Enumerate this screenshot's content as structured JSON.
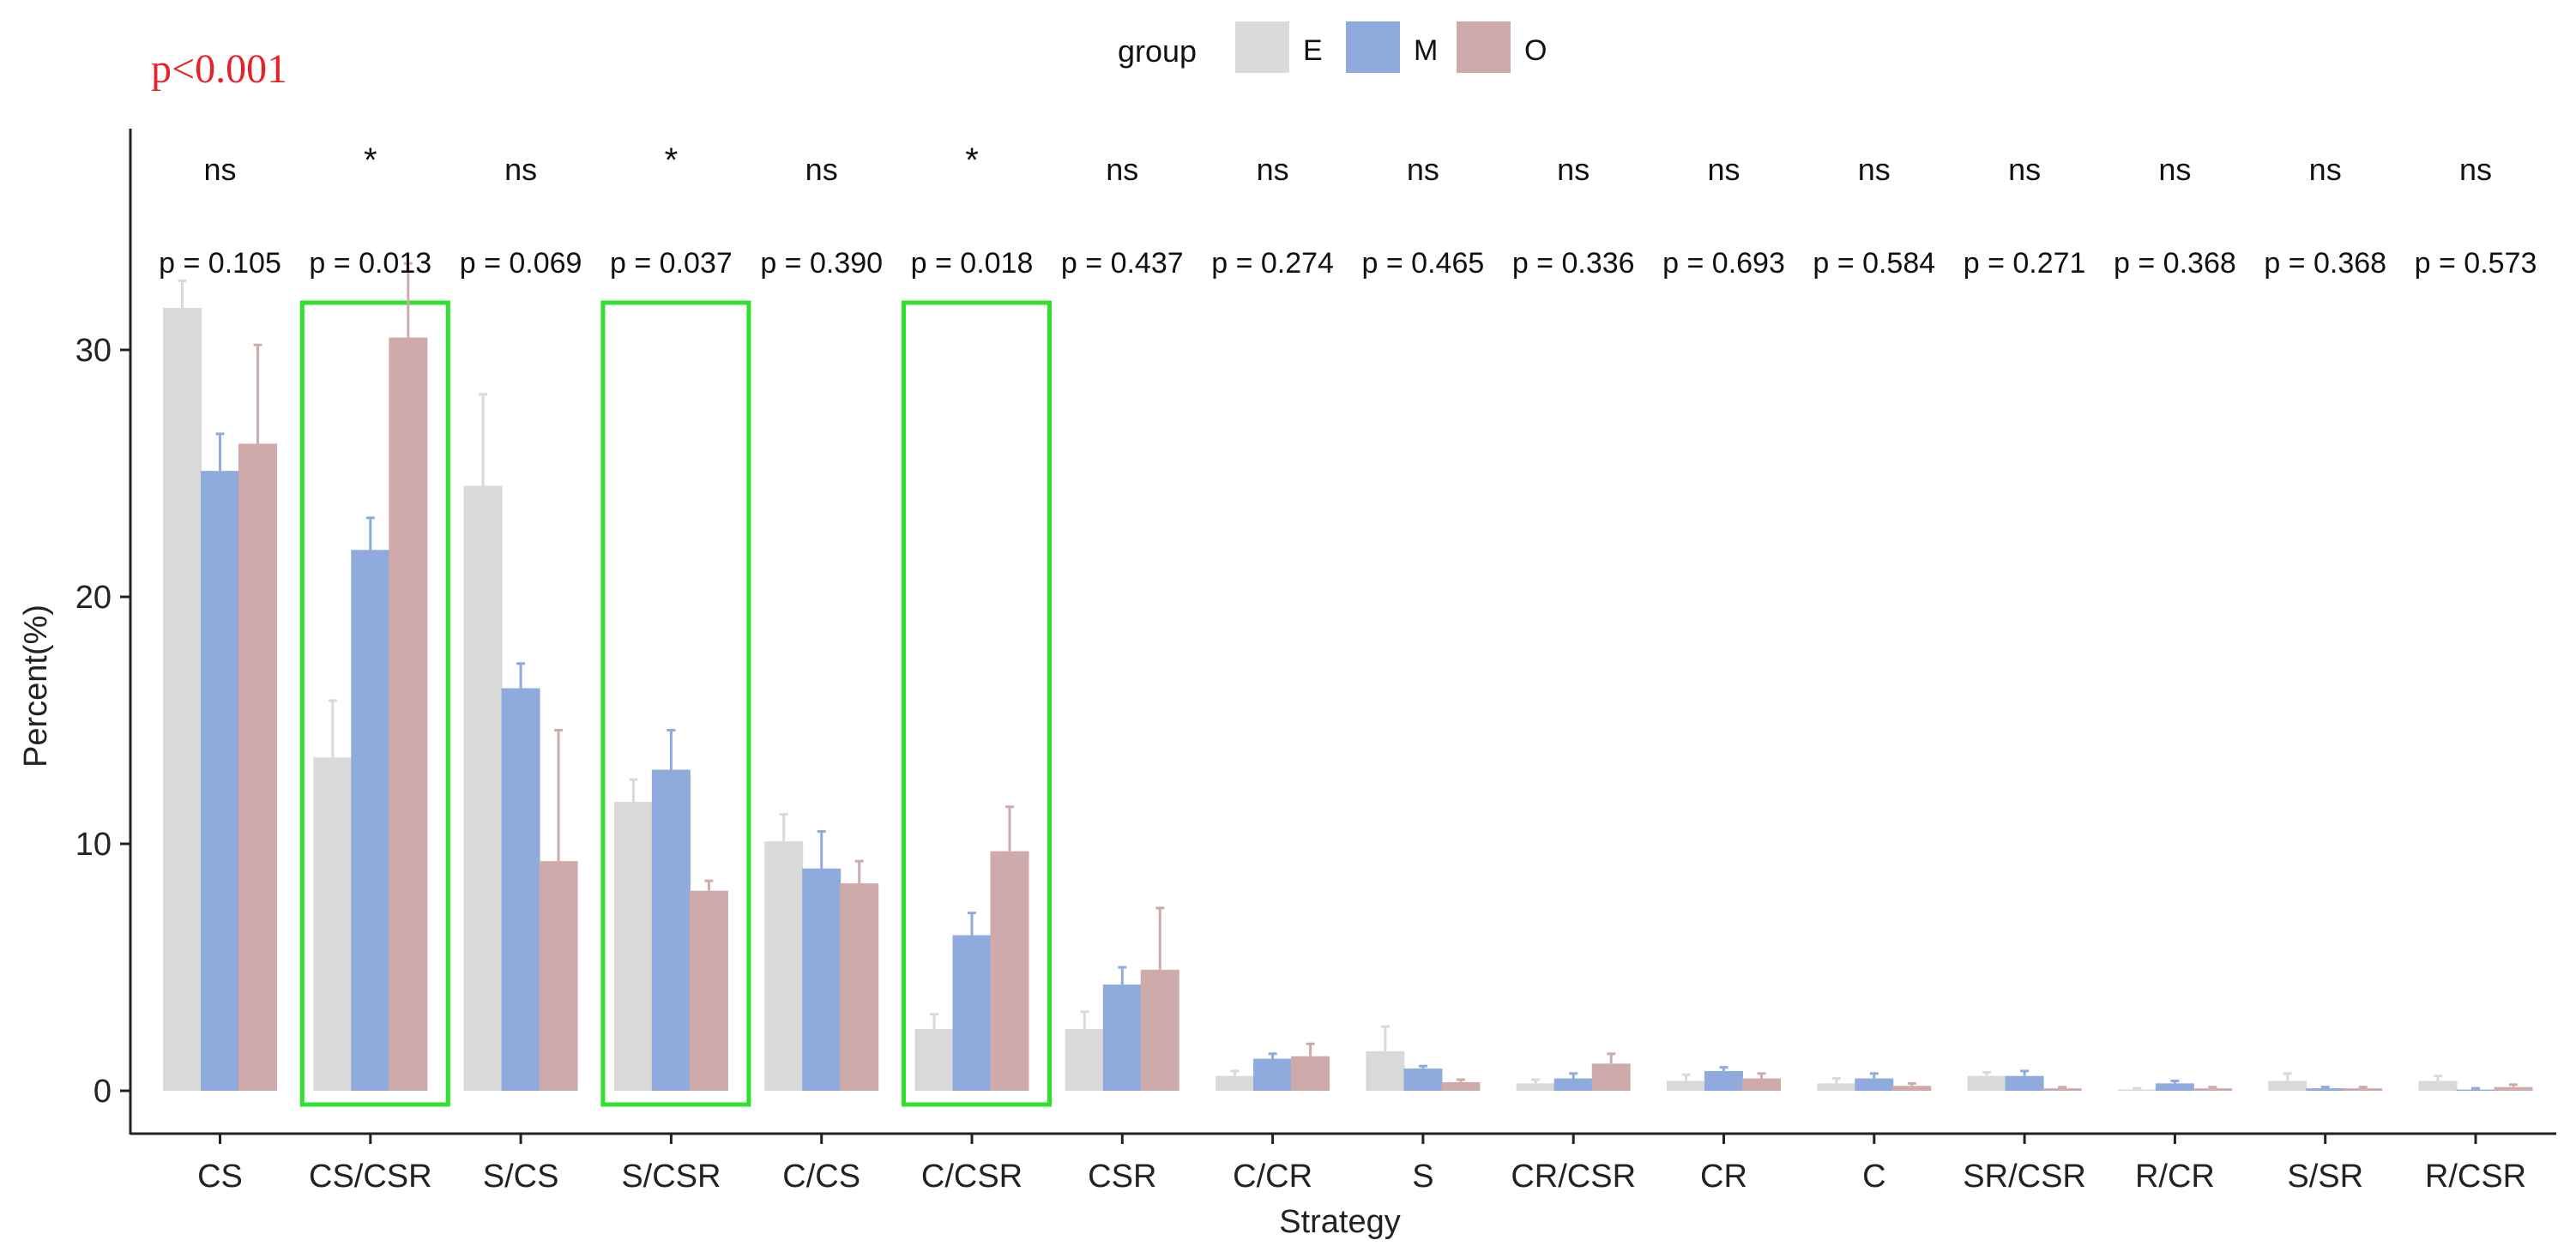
{
  "overall_p": {
    "text": "p<0.001",
    "color": "#e8212b"
  },
  "legend": {
    "title": "group",
    "items": [
      {
        "label": "E",
        "color": "#d9d9d9"
      },
      {
        "label": "M",
        "color": "#8faadc"
      },
      {
        "label": "O",
        "color": "#cfaaaa"
      }
    ]
  },
  "highlight_color": "#2fe02f",
  "chart_data": {
    "type": "bar",
    "title": "",
    "xlabel": "Strategy",
    "ylabel": "Percent(%)",
    "ylim": [
      -1.5,
      39
    ],
    "yticks": [
      0,
      10,
      20,
      30
    ],
    "ytick_labels": [
      "0",
      "10",
      "20",
      "30"
    ],
    "categories": [
      "CS",
      "CS/CSR",
      "S/CS",
      "S/CSR",
      "C/CS",
      "C/CSR",
      "CSR",
      "C/CR",
      "S",
      "CR/CSR",
      "CR",
      "C",
      "SR/CSR",
      "R/CR",
      "S/SR",
      "R/CSR"
    ],
    "series": [
      {
        "name": "E",
        "color": "#d9d9d9",
        "values": [
          31.7,
          13.5,
          24.5,
          11.7,
          10.1,
          2.5,
          2.5,
          0.6,
          1.6,
          0.3,
          0.4,
          0.3,
          0.6,
          0.05,
          0.4,
          0.4
        ],
        "errors": [
          1.1,
          2.3,
          3.7,
          0.9,
          1.1,
          0.6,
          0.7,
          0.2,
          1.0,
          0.15,
          0.25,
          0.2,
          0.15,
          0.05,
          0.3,
          0.2
        ]
      },
      {
        "name": "M",
        "color": "#8faadc",
        "values": [
          25.1,
          21.9,
          16.3,
          13.0,
          9.0,
          6.3,
          4.3,
          1.3,
          0.9,
          0.5,
          0.8,
          0.5,
          0.6,
          0.3,
          0.1,
          0.05
        ],
        "errors": [
          1.5,
          1.3,
          1.0,
          1.6,
          1.5,
          0.9,
          0.7,
          0.2,
          0.1,
          0.2,
          0.15,
          0.2,
          0.2,
          0.1,
          0.05,
          0.05
        ]
      },
      {
        "name": "O",
        "color": "#cfaaaa",
        "values": [
          26.2,
          30.5,
          9.3,
          8.1,
          8.4,
          9.7,
          4.9,
          1.4,
          0.35,
          1.1,
          0.5,
          0.2,
          0.1,
          0.1,
          0.1,
          0.15
        ],
        "errors": [
          4.0,
          3.0,
          5.3,
          0.4,
          0.9,
          1.8,
          2.5,
          0.5,
          0.1,
          0.4,
          0.2,
          0.1,
          0.05,
          0.05,
          0.05,
          0.1
        ]
      }
    ],
    "p_values": [
      "p = 0.105",
      "p = 0.013",
      "p = 0.069",
      "p = 0.037",
      "p = 0.390",
      "p = 0.018",
      "p = 0.437",
      "p = 0.274",
      "p = 0.465",
      "p = 0.336",
      "p = 0.693",
      "p = 0.584",
      "p = 0.271",
      "p = 0.368",
      "p = 0.368",
      "p = 0.573"
    ],
    "significance": [
      "ns",
      "*",
      "ns",
      "*",
      "ns",
      "*",
      "ns",
      "ns",
      "ns",
      "ns",
      "ns",
      "ns",
      "ns",
      "ns",
      "ns",
      "ns"
    ],
    "highlighted_categories": [
      "CS/CSR",
      "S/CSR",
      "C/CSR"
    ],
    "grid": false,
    "legend_position": "top"
  }
}
